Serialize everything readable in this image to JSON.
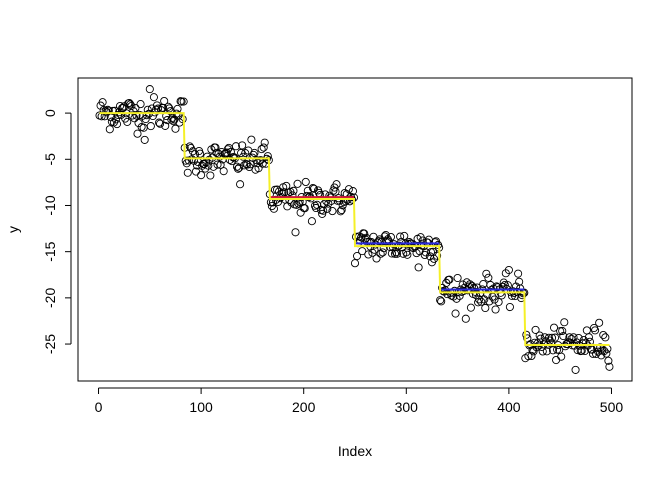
{
  "chart_data": {
    "type": "scatter",
    "title": "",
    "xlabel": "Index",
    "ylabel": "y",
    "xlim": [
      -20,
      520
    ],
    "ylim": [
      -29,
      3.8
    ],
    "xticks": [
      0,
      100,
      200,
      300,
      400,
      500
    ],
    "yticks": [
      0,
      -5,
      -10,
      -15,
      -20,
      -25
    ],
    "grid": false,
    "legend": "none",
    "points_per_segment": 83,
    "segments": [
      {
        "x_start": 1,
        "x_end": 83,
        "level": 0.0
      },
      {
        "x_start": 84,
        "x_end": 166,
        "level": -5.0
      },
      {
        "x_start": 167,
        "x_end": 249,
        "level": -9.3
      },
      {
        "x_start": 250,
        "x_end": 332,
        "level": -14.3
      },
      {
        "x_start": 333,
        "x_end": 415,
        "level": -19.3
      },
      {
        "x_start": 416,
        "x_end": 498,
        "level": -25.0
      }
    ],
    "noise_sd": 1.0,
    "notable_points": [
      {
        "x": 50,
        "y": 2.6
      },
      {
        "x": 45,
        "y": -2.9
      },
      {
        "x": 138,
        "y": -7.7
      },
      {
        "x": 192,
        "y": -12.9
      },
      {
        "x": 208,
        "y": -11.7
      },
      {
        "x": 312,
        "y": -16.7
      },
      {
        "x": 348,
        "y": -21.7
      },
      {
        "x": 465,
        "y": -27.8
      },
      {
        "x": 488,
        "y": -22.7
      }
    ],
    "series": [
      {
        "kind": "segment-means",
        "color": "#d0193a",
        "segments": [
          {
            "x0": 167,
            "x1": 249,
            "y": -9.1
          }
        ]
      },
      {
        "kind": "segment-means",
        "color": "#2b2bd9",
        "segments": [
          {
            "x0": 250,
            "x1": 332,
            "y": -14.1
          },
          {
            "x0": 333,
            "x1": 415,
            "y": -19.1
          }
        ]
      },
      {
        "kind": "step-fit",
        "color": "#f5f028",
        "steps": [
          {
            "x0": 1,
            "x1": 83,
            "y": 0.0
          },
          {
            "x0": 84,
            "x1": 166,
            "y": -4.9
          },
          {
            "x0": 167,
            "x1": 249,
            "y": -9.3
          },
          {
            "x0": 250,
            "x1": 332,
            "y": -14.4
          },
          {
            "x0": 333,
            "x1": 415,
            "y": -19.4
          },
          {
            "x0": 416,
            "x1": 498,
            "y": -25.1
          }
        ]
      }
    ]
  }
}
